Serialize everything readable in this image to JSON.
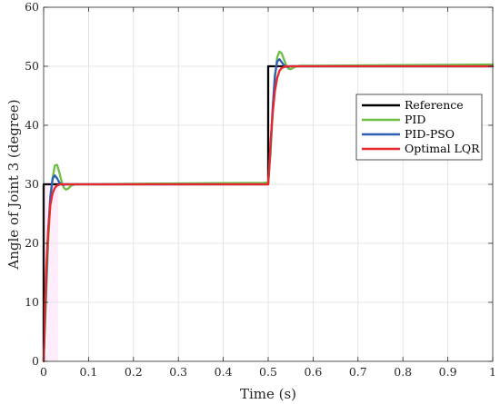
{
  "chart_data": {
    "type": "line",
    "title": "",
    "xlabel": "Time (s)",
    "ylabel": "Angle of Joint 3 (degree)",
    "xlim": [
      0,
      1
    ],
    "ylim": [
      0,
      60
    ],
    "xticks": [
      0,
      0.1,
      0.2,
      0.3,
      0.4,
      0.5,
      0.6,
      0.7,
      0.8,
      0.9,
      1
    ],
    "xtick_labels": [
      "0",
      "0.1",
      "0.2",
      "0.3",
      "0.4",
      "0.5",
      "0.6",
      "0.7",
      "0.8",
      "0.9",
      "1"
    ],
    "yticks": [
      0,
      10,
      20,
      30,
      40,
      50,
      60
    ],
    "ytick_labels": [
      "0",
      "10",
      "20",
      "30",
      "40",
      "50",
      "60"
    ],
    "grid": true,
    "legend_position": "right",
    "series": [
      {
        "name": "Reference",
        "color": "#000000",
        "x": [
          0,
          0,
          0.5,
          0.5,
          1
        ],
        "y": [
          0,
          30,
          30,
          50,
          50
        ]
      },
      {
        "name": "PID",
        "color": "#6fbe44",
        "x": [
          0,
          0.005,
          0.01,
          0.015,
          0.02,
          0.025,
          0.03,
          0.035,
          0.04,
          0.045,
          0.05,
          0.055,
          0.06,
          0.07,
          0.08,
          0.1,
          0.2,
          0.3,
          0.4,
          0.49,
          0.5,
          0.505,
          0.51,
          0.515,
          0.52,
          0.525,
          0.53,
          0.535,
          0.54,
          0.545,
          0.55,
          0.555,
          0.56,
          0.57,
          0.6,
          0.7,
          0.8,
          0.9,
          1
        ],
        "y": [
          0,
          10,
          20,
          27,
          31,
          33.2,
          33.3,
          32,
          30.5,
          29.4,
          29.1,
          29.3,
          29.7,
          30.0,
          30.0,
          30.0,
          30.1,
          30.15,
          30.2,
          30.25,
          30.3,
          35,
          42,
          48,
          51.5,
          52.5,
          52.2,
          51.2,
          50.2,
          49.6,
          49.5,
          49.7,
          49.9,
          50.1,
          50.1,
          50.15,
          50.2,
          50.25,
          50.3
        ]
      },
      {
        "name": "PID-PSO",
        "color": "#2f5fb3",
        "x": [
          0,
          0.005,
          0.01,
          0.015,
          0.02,
          0.025,
          0.03,
          0.035,
          0.04,
          0.045,
          0.05,
          0.06,
          0.1,
          0.2,
          0.3,
          0.4,
          0.5,
          0.505,
          0.51,
          0.515,
          0.52,
          0.525,
          0.53,
          0.535,
          0.54,
          0.545,
          0.55,
          0.6,
          0.8,
          1
        ],
        "y": [
          0,
          12,
          22,
          28,
          31,
          31.5,
          31,
          30.3,
          30,
          29.9,
          30,
          30,
          30,
          30,
          30,
          30,
          30,
          36,
          43,
          48.5,
          50.8,
          51.2,
          50.7,
          50.2,
          49.9,
          49.9,
          50,
          50,
          50,
          50
        ]
      },
      {
        "name": "Optimal LQR",
        "color": "#e8262c",
        "x": [
          0,
          0.003,
          0.006,
          0.01,
          0.015,
          0.02,
          0.025,
          0.03,
          0.035,
          0.04,
          0.06,
          0.1,
          0.2,
          0.3,
          0.4,
          0.5,
          0.503,
          0.506,
          0.51,
          0.515,
          0.52,
          0.525,
          0.53,
          0.54,
          0.6,
          0.8,
          1
        ],
        "y": [
          0,
          9,
          16,
          22,
          26.5,
          28.5,
          29.4,
          29.8,
          29.95,
          30,
          30,
          30,
          30,
          30,
          30,
          30,
          34,
          38,
          42,
          45.8,
          48,
          49.2,
          49.7,
          50,
          50,
          50,
          50
        ]
      }
    ]
  }
}
